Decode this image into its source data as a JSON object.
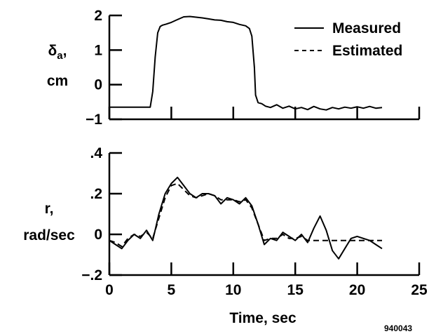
{
  "figure_id": "940043",
  "chart_data": [
    {
      "type": "line",
      "ylabel_lines": [
        "δa,",
        "cm"
      ],
      "ylabel_symbol": "δ",
      "ylabel_subscript": "a",
      "ylabel_suffix": ",",
      "ylabel_unit": "cm",
      "xlim": [
        0,
        22
      ],
      "ylim": [
        -1,
        2
      ],
      "yticks": [
        -1,
        0,
        1,
        2
      ],
      "ytick_labels": [
        "−1",
        "0",
        "1",
        "2"
      ],
      "xticks": [
        0,
        5,
        10,
        15,
        20,
        25
      ],
      "legend": {
        "placement": "top-right",
        "entries": [
          {
            "label": "Measured",
            "style": "solid"
          },
          {
            "label": "Estimated",
            "style": "dashed"
          }
        ]
      },
      "series": [
        {
          "name": "Measured",
          "style": "solid",
          "x": [
            0,
            3.3,
            3.5,
            3.7,
            3.9,
            4.1,
            4.3,
            4.6,
            5.0,
            5.5,
            6.0,
            6.5,
            7.0,
            7.5,
            8.0,
            8.5,
            9.0,
            9.5,
            10.0,
            10.5,
            11.0,
            11.3,
            11.5,
            11.7,
            11.8,
            12.0,
            12.3,
            12.6,
            13.0,
            13.5,
            14.0,
            14.5,
            15.0,
            15.5,
            16.0,
            16.5,
            17.0,
            17.5,
            18.0,
            18.5,
            19.0,
            19.5,
            20.0,
            20.5,
            21.0,
            21.5,
            22.0
          ],
          "y": [
            -0.65,
            -0.65,
            -0.2,
            0.8,
            1.5,
            1.68,
            1.72,
            1.75,
            1.8,
            1.88,
            1.96,
            1.97,
            1.95,
            1.93,
            1.9,
            1.87,
            1.86,
            1.82,
            1.8,
            1.74,
            1.7,
            1.62,
            1.4,
            0.5,
            -0.3,
            -0.52,
            -0.55,
            -0.62,
            -0.66,
            -0.58,
            -0.68,
            -0.62,
            -0.7,
            -0.66,
            -0.72,
            -0.63,
            -0.7,
            -0.73,
            -0.66,
            -0.7,
            -0.65,
            -0.68,
            -0.64,
            -0.68,
            -0.63,
            -0.68,
            -0.66
          ]
        }
      ]
    },
    {
      "type": "line",
      "ylabel_lines": [
        "r,",
        "rad/sec"
      ],
      "xlabel": "Time, sec",
      "xlim": [
        0,
        25
      ],
      "ylim": [
        -0.2,
        0.4
      ],
      "yticks": [
        -0.2,
        0,
        0.2,
        0.4
      ],
      "ytick_labels": [
        "−.2",
        "0",
        ".2",
        ".4"
      ],
      "xticks": [
        0,
        5,
        10,
        15,
        20,
        25
      ],
      "xtick_labels": [
        "0",
        "5",
        "10",
        "15",
        "20",
        "25"
      ],
      "series": [
        {
          "name": "Measured",
          "style": "solid",
          "x": [
            0,
            0.5,
            1.0,
            1.5,
            2.0,
            2.5,
            3.0,
            3.5,
            4.0,
            4.5,
            5.0,
            5.5,
            6.0,
            6.5,
            7.0,
            7.5,
            8.0,
            8.5,
            9.0,
            9.5,
            10.0,
            10.5,
            11.0,
            11.5,
            12.0,
            12.5,
            13.0,
            13.5,
            14.0,
            14.5,
            15.0,
            15.5,
            16.0,
            16.5,
            17.0,
            17.5,
            18.0,
            18.5,
            19.0,
            19.5,
            20.0,
            20.5,
            21.0,
            21.5,
            22.0
          ],
          "y": [
            -0.03,
            -0.05,
            -0.07,
            -0.03,
            0.0,
            -0.02,
            0.02,
            -0.03,
            0.1,
            0.2,
            0.25,
            0.28,
            0.24,
            0.2,
            0.18,
            0.2,
            0.2,
            0.19,
            0.15,
            0.18,
            0.17,
            0.15,
            0.18,
            0.14,
            0.05,
            -0.05,
            -0.02,
            -0.03,
            0.01,
            -0.01,
            -0.03,
            0.0,
            -0.04,
            0.03,
            0.09,
            0.02,
            -0.08,
            -0.12,
            -0.07,
            -0.02,
            -0.01,
            -0.02,
            -0.03,
            -0.05,
            -0.07
          ]
        },
        {
          "name": "Estimated",
          "style": "dashed",
          "x": [
            0,
            0.5,
            1.0,
            1.5,
            2.0,
            2.5,
            3.0,
            3.5,
            4.0,
            4.5,
            5.0,
            5.5,
            6.0,
            6.5,
            7.0,
            7.5,
            8.0,
            8.5,
            9.0,
            9.5,
            10.0,
            10.5,
            11.0,
            11.5,
            12.0,
            12.5,
            13.0,
            13.5,
            14.0,
            14.5,
            15.0,
            15.5,
            16.0,
            16.5,
            17.0,
            17.5,
            18.0,
            18.5,
            19.0,
            19.5,
            20.0,
            20.5,
            21.0,
            21.5,
            22.0
          ],
          "y": [
            -0.03,
            -0.04,
            -0.06,
            -0.02,
            0.0,
            -0.01,
            0.01,
            -0.02,
            0.08,
            0.18,
            0.24,
            0.25,
            0.22,
            0.19,
            0.18,
            0.19,
            0.2,
            0.19,
            0.17,
            0.17,
            0.17,
            0.16,
            0.17,
            0.13,
            0.05,
            -0.03,
            -0.02,
            -0.02,
            0.0,
            -0.02,
            -0.02,
            -0.01,
            -0.03,
            -0.03,
            -0.03,
            -0.03,
            -0.03,
            -0.03,
            -0.03,
            -0.03,
            -0.03,
            -0.03,
            -0.03,
            -0.03,
            -0.03
          ]
        }
      ]
    }
  ]
}
